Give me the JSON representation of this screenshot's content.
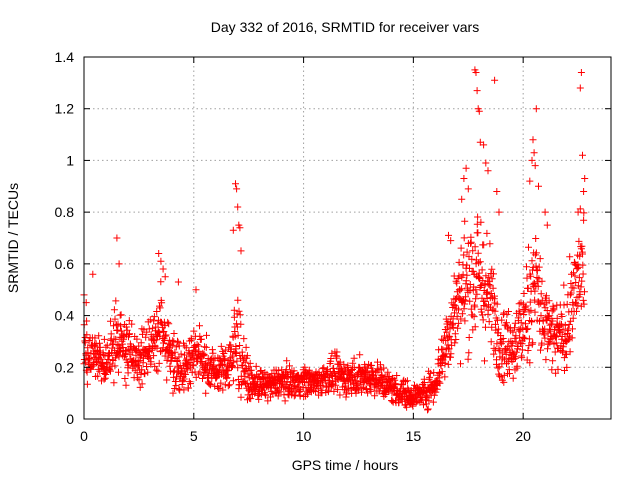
{
  "chart_data": {
    "type": "scatter",
    "title": "Day 332 of 2016, SRMTID for receiver vars",
    "xlabel": "GPS time / hours",
    "ylabel": "SRMTID / TECUs",
    "xlim": [
      0,
      24
    ],
    "ylim": [
      0,
      1.4
    ],
    "x_ticks": [
      0,
      5,
      10,
      15,
      20
    ],
    "y_ticks": [
      0,
      0.2,
      0.4,
      0.6,
      0.8,
      1,
      1.2,
      1.4
    ],
    "x_tick_labels": [
      "0",
      "5",
      "10",
      "15",
      "20"
    ],
    "y_tick_labels": [
      "0",
      "0.2",
      "0.4",
      "0.6",
      "0.8",
      "1",
      "1.2",
      "1.4"
    ],
    "grid": true,
    "marker": "+",
    "marker_color": "#ff0000",
    "series": [
      {
        "name": "SRMTID",
        "profile": [
          [
            0.0,
            0.26,
            0.08
          ],
          [
            0.5,
            0.24,
            0.07
          ],
          [
            1.0,
            0.22,
            0.06
          ],
          [
            1.5,
            0.3,
            0.1
          ],
          [
            2.0,
            0.26,
            0.09
          ],
          [
            2.5,
            0.22,
            0.07
          ],
          [
            3.0,
            0.3,
            0.08
          ],
          [
            3.5,
            0.34,
            0.12
          ],
          [
            4.0,
            0.24,
            0.08
          ],
          [
            4.5,
            0.2,
            0.07
          ],
          [
            5.0,
            0.25,
            0.08
          ],
          [
            5.5,
            0.22,
            0.07
          ],
          [
            6.0,
            0.18,
            0.05
          ],
          [
            6.5,
            0.2,
            0.06
          ],
          [
            7.0,
            0.3,
            0.15
          ],
          [
            7.5,
            0.14,
            0.04
          ],
          [
            8.0,
            0.13,
            0.04
          ],
          [
            8.5,
            0.13,
            0.04
          ],
          [
            9.0,
            0.15,
            0.04
          ],
          [
            9.5,
            0.14,
            0.04
          ],
          [
            10.0,
            0.15,
            0.04
          ],
          [
            10.5,
            0.14,
            0.04
          ],
          [
            11.0,
            0.16,
            0.04
          ],
          [
            11.5,
            0.17,
            0.05
          ],
          [
            12.0,
            0.16,
            0.05
          ],
          [
            12.5,
            0.16,
            0.05
          ],
          [
            13.0,
            0.17,
            0.05
          ],
          [
            13.5,
            0.15,
            0.05
          ],
          [
            14.0,
            0.12,
            0.04
          ],
          [
            14.5,
            0.1,
            0.04
          ],
          [
            15.0,
            0.09,
            0.03
          ],
          [
            15.5,
            0.1,
            0.04
          ],
          [
            16.0,
            0.14,
            0.05
          ],
          [
            16.5,
            0.3,
            0.1
          ],
          [
            17.0,
            0.45,
            0.12
          ],
          [
            17.5,
            0.55,
            0.18
          ],
          [
            18.0,
            0.55,
            0.2
          ],
          [
            18.5,
            0.45,
            0.15
          ],
          [
            19.0,
            0.3,
            0.1
          ],
          [
            19.5,
            0.28,
            0.09
          ],
          [
            20.0,
            0.35,
            0.12
          ],
          [
            20.5,
            0.55,
            0.2
          ],
          [
            21.0,
            0.35,
            0.12
          ],
          [
            21.5,
            0.3,
            0.1
          ],
          [
            22.0,
            0.35,
            0.1
          ],
          [
            22.5,
            0.55,
            0.15
          ],
          [
            22.8,
            0.6,
            0.15
          ]
        ],
        "outliers": [
          [
            0.0,
            0.48
          ],
          [
            0.1,
            0.45
          ],
          [
            0.4,
            0.56
          ],
          [
            1.5,
            0.7
          ],
          [
            1.6,
            0.6
          ],
          [
            3.4,
            0.64
          ],
          [
            3.5,
            0.61
          ],
          [
            3.6,
            0.58
          ],
          [
            3.7,
            0.55
          ],
          [
            4.3,
            0.53
          ],
          [
            5.1,
            0.5
          ],
          [
            6.8,
            0.73
          ],
          [
            6.9,
            0.91
          ],
          [
            6.95,
            0.89
          ],
          [
            7.0,
            0.82
          ],
          [
            7.05,
            0.75
          ],
          [
            7.1,
            0.74
          ],
          [
            7.15,
            0.65
          ],
          [
            16.6,
            0.71
          ],
          [
            16.7,
            0.69
          ],
          [
            17.2,
            0.85
          ],
          [
            17.3,
            0.93
          ],
          [
            17.4,
            0.97
          ],
          [
            17.5,
            0.89
          ],
          [
            17.8,
            1.35
          ],
          [
            17.85,
            1.34
          ],
          [
            17.9,
            1.27
          ],
          [
            17.95,
            1.2
          ],
          [
            18.0,
            1.19
          ],
          [
            18.05,
            1.07
          ],
          [
            18.2,
            1.06
          ],
          [
            18.3,
            0.99
          ],
          [
            18.4,
            0.96
          ],
          [
            18.7,
            1.31
          ],
          [
            18.8,
            0.88
          ],
          [
            18.9,
            0.8
          ],
          [
            20.3,
            0.92
          ],
          [
            20.4,
            1.0
          ],
          [
            20.45,
            1.08
          ],
          [
            20.5,
            1.03
          ],
          [
            20.55,
            0.98
          ],
          [
            20.6,
            1.2
          ],
          [
            20.7,
            0.9
          ],
          [
            21.0,
            0.8
          ],
          [
            21.1,
            0.75
          ],
          [
            22.5,
            0.8
          ],
          [
            22.6,
            1.28
          ],
          [
            22.65,
            1.34
          ],
          [
            22.7,
            1.02
          ],
          [
            22.75,
            0.88
          ],
          [
            22.8,
            0.93
          ]
        ]
      }
    ]
  }
}
